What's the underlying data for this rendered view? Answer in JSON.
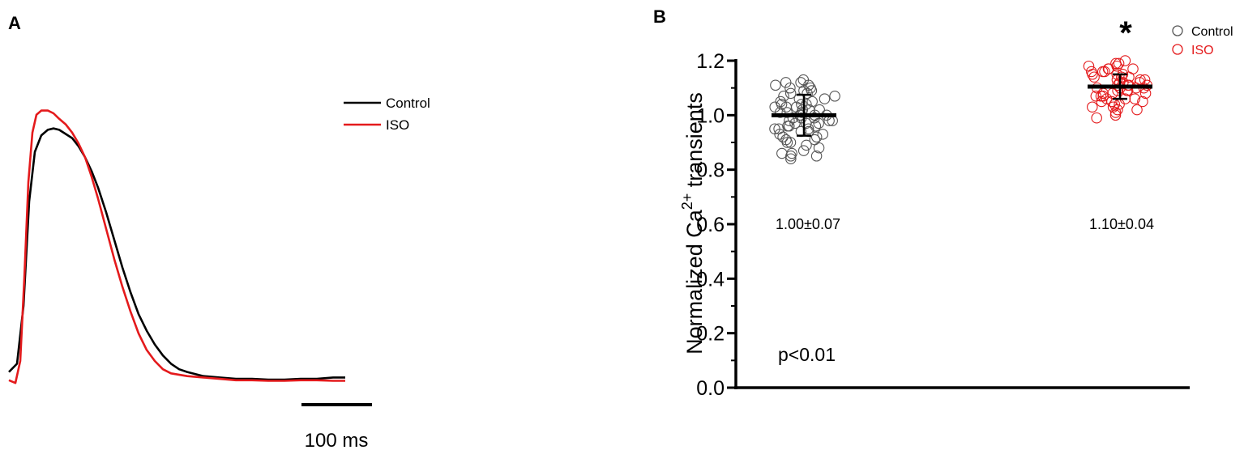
{
  "chart_data": [
    {
      "panel_label": "A",
      "type": "line",
      "xlabel": "",
      "ylabel": "",
      "scale_bar_label": "100 ms",
      "legend": {
        "placement": "top-right"
      },
      "series": [
        {
          "name": "Control",
          "color": "#000000",
          "points": [
            [
              0,
              0.06
            ],
            [
              10,
              0.09
            ],
            [
              18,
              0.3
            ],
            [
              25,
              0.68
            ],
            [
              32,
              0.86
            ],
            [
              40,
              0.92
            ],
            [
              48,
              0.94
            ],
            [
              55,
              0.945
            ],
            [
              62,
              0.94
            ],
            [
              70,
              0.925
            ],
            [
              78,
              0.91
            ],
            [
              86,
              0.88
            ],
            [
              94,
              0.84
            ],
            [
              102,
              0.79
            ],
            [
              110,
              0.73
            ],
            [
              120,
              0.64
            ],
            [
              130,
              0.54
            ],
            [
              140,
              0.44
            ],
            [
              150,
              0.35
            ],
            [
              160,
              0.27
            ],
            [
              170,
              0.21
            ],
            [
              180,
              0.16
            ],
            [
              190,
              0.12
            ],
            [
              200,
              0.09
            ],
            [
              210,
              0.07
            ],
            [
              220,
              0.06
            ],
            [
              240,
              0.045
            ],
            [
              260,
              0.04
            ],
            [
              280,
              0.035
            ],
            [
              300,
              0.035
            ],
            [
              320,
              0.032
            ],
            [
              340,
              0.032
            ],
            [
              360,
              0.035
            ],
            [
              380,
              0.035
            ],
            [
              400,
              0.04
            ],
            [
              415,
              0.04
            ]
          ]
        },
        {
          "name": "ISO",
          "color": "#e41a1c",
          "points": [
            [
              0,
              0.03
            ],
            [
              8,
              0.02
            ],
            [
              14,
              0.1
            ],
            [
              19,
              0.4
            ],
            [
              24,
              0.75
            ],
            [
              29,
              0.93
            ],
            [
              34,
              0.995
            ],
            [
              40,
              1.01
            ],
            [
              48,
              1.01
            ],
            [
              55,
              1.0
            ],
            [
              62,
              0.98
            ],
            [
              70,
              0.96
            ],
            [
              78,
              0.93
            ],
            [
              86,
              0.89
            ],
            [
              94,
              0.84
            ],
            [
              102,
              0.77
            ],
            [
              110,
              0.69
            ],
            [
              120,
              0.58
            ],
            [
              130,
              0.47
            ],
            [
              140,
              0.37
            ],
            [
              150,
              0.28
            ],
            [
              160,
              0.2
            ],
            [
              170,
              0.14
            ],
            [
              180,
              0.1
            ],
            [
              190,
              0.07
            ],
            [
              200,
              0.055
            ],
            [
              220,
              0.045
            ],
            [
              240,
              0.04
            ],
            [
              260,
              0.035
            ],
            [
              280,
              0.03
            ],
            [
              300,
              0.03
            ],
            [
              320,
              0.028
            ],
            [
              340,
              0.028
            ],
            [
              360,
              0.03
            ],
            [
              380,
              0.03
            ],
            [
              400,
              0.028
            ],
            [
              415,
              0.028
            ]
          ]
        }
      ]
    },
    {
      "panel_label": "B",
      "type": "scatter",
      "ylabel_main": "Normalized Ca",
      "ylabel_sup": "2+",
      "ylabel_end": " transients",
      "ylim": [
        0,
        1.2
      ],
      "yticks": [
        "0.0",
        "0.2",
        "0.4",
        "0.6",
        "0.8",
        "1.0",
        "1.2"
      ],
      "grid": false,
      "legend": {
        "placement": "top-right"
      },
      "p_value": "p<0.01",
      "significance_marker": "*",
      "groups": [
        {
          "name": "Control",
          "color": "#555555",
          "mean": 1.0,
          "sd": 0.075,
          "summary": "1.00±0.07",
          "values": [
            1.13,
            1.12,
            1.12,
            1.11,
            1.11,
            1.1,
            1.1,
            1.09,
            1.09,
            1.08,
            1.08,
            1.07,
            1.07,
            1.06,
            1.06,
            1.05,
            1.05,
            1.04,
            1.04,
            1.04,
            1.03,
            1.03,
            1.03,
            1.02,
            1.02,
            1.02,
            1.01,
            1.01,
            1.01,
            1.0,
            1.0,
            1.0,
            1.0,
            0.99,
            0.99,
            0.99,
            0.98,
            0.98,
            0.98,
            0.97,
            0.97,
            0.97,
            0.96,
            0.96,
            0.96,
            0.95,
            0.95,
            0.95,
            0.94,
            0.94,
            0.93,
            0.93,
            0.92,
            0.92,
            0.91,
            0.91,
            0.9,
            0.9,
            0.89,
            0.88,
            0.87,
            0.86,
            0.86,
            0.85,
            0.85,
            0.84
          ]
        },
        {
          "name": "ISO",
          "color": "#e41a1c",
          "mean": 1.105,
          "sd": 0.045,
          "summary": "1.10±0.04",
          "values": [
            1.2,
            1.19,
            1.19,
            1.18,
            1.18,
            1.17,
            1.17,
            1.17,
            1.16,
            1.16,
            1.16,
            1.15,
            1.15,
            1.15,
            1.14,
            1.14,
            1.14,
            1.13,
            1.13,
            1.13,
            1.12,
            1.12,
            1.12,
            1.11,
            1.11,
            1.11,
            1.11,
            1.1,
            1.1,
            1.1,
            1.1,
            1.09,
            1.09,
            1.09,
            1.08,
            1.08,
            1.08,
            1.07,
            1.07,
            1.07,
            1.06,
            1.06,
            1.06,
            1.05,
            1.05,
            1.05,
            1.04,
            1.04,
            1.03,
            1.03,
            1.02,
            1.02,
            1.01,
            1.0,
            0.99
          ]
        }
      ]
    }
  ]
}
